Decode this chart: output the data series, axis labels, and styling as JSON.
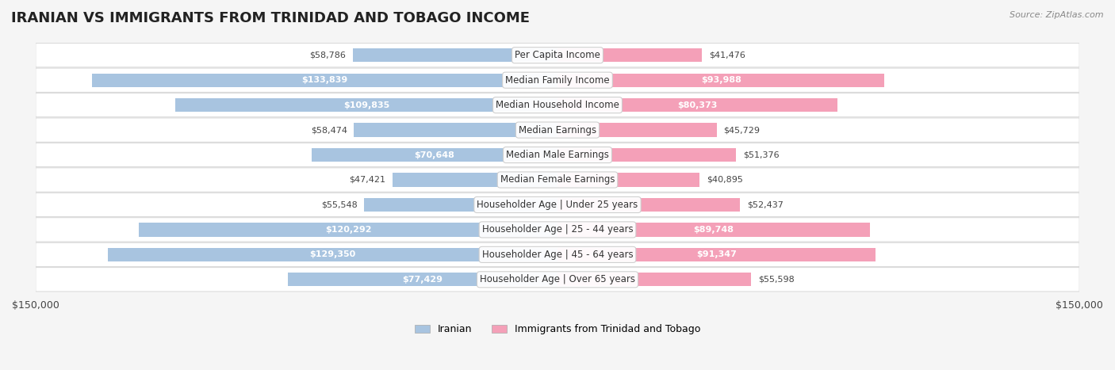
{
  "title": "IRANIAN VS IMMIGRANTS FROM TRINIDAD AND TOBAGO INCOME",
  "source": "Source: ZipAtlas.com",
  "categories": [
    "Per Capita Income",
    "Median Family Income",
    "Median Household Income",
    "Median Earnings",
    "Median Male Earnings",
    "Median Female Earnings",
    "Householder Age | Under 25 years",
    "Householder Age | 25 - 44 years",
    "Householder Age | 45 - 64 years",
    "Householder Age | Over 65 years"
  ],
  "iranian_values": [
    58786,
    133839,
    109835,
    58474,
    70648,
    47421,
    55548,
    120292,
    129350,
    77429
  ],
  "trinidad_values": [
    41476,
    93988,
    80373,
    45729,
    51376,
    40895,
    52437,
    89748,
    91347,
    55598
  ],
  "iranian_labels": [
    "$58,786",
    "$133,839",
    "$109,835",
    "$58,474",
    "$70,648",
    "$47,421",
    "$55,548",
    "$120,292",
    "$129,350",
    "$77,429"
  ],
  "trinidad_labels": [
    "$41,476",
    "$93,988",
    "$80,373",
    "$45,729",
    "$51,376",
    "$40,895",
    "$52,437",
    "$89,748",
    "$91,347",
    "$55,598"
  ],
  "iranian_color": "#a8c4e0",
  "trinidad_color": "#f4a0b8",
  "iranian_dark_color": "#5b9bd5",
  "trinidad_dark_color": "#e87fa0",
  "background_color": "#f5f5f5",
  "row_bg_color": "#ffffff",
  "max_value": 150000,
  "legend_iranian": "Iranian",
  "legend_trinidad": "Immigrants from Trinidad and Tobago",
  "xlabel_left": "$150,000",
  "xlabel_right": "$150,000"
}
